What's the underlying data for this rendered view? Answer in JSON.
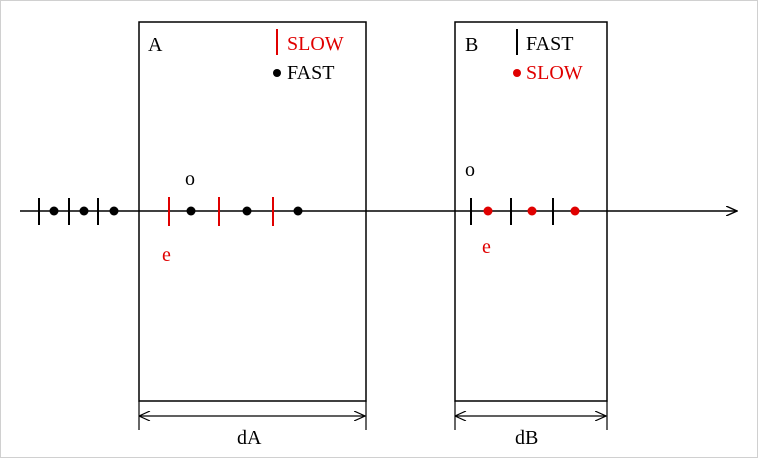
{
  "colors": {
    "red": "#e00000",
    "black": "#000000",
    "frame": "#d0d0d0"
  },
  "box_a": {
    "label": "A",
    "legend": [
      {
        "marker": "tick",
        "color": "#e00000",
        "text": "SLOW"
      },
      {
        "marker": "dot",
        "color": "#000000",
        "text": "FAST"
      }
    ],
    "o_label": "o",
    "e_label": "e",
    "dimension_label": "dA"
  },
  "box_b": {
    "label": "B",
    "legend": [
      {
        "marker": "tick",
        "color": "#000000",
        "text": "FAST"
      },
      {
        "marker": "dot",
        "color": "#e00000",
        "text": "SLOW"
      }
    ],
    "o_label": "o",
    "e_label": "e",
    "dimension_label": "dB"
  }
}
